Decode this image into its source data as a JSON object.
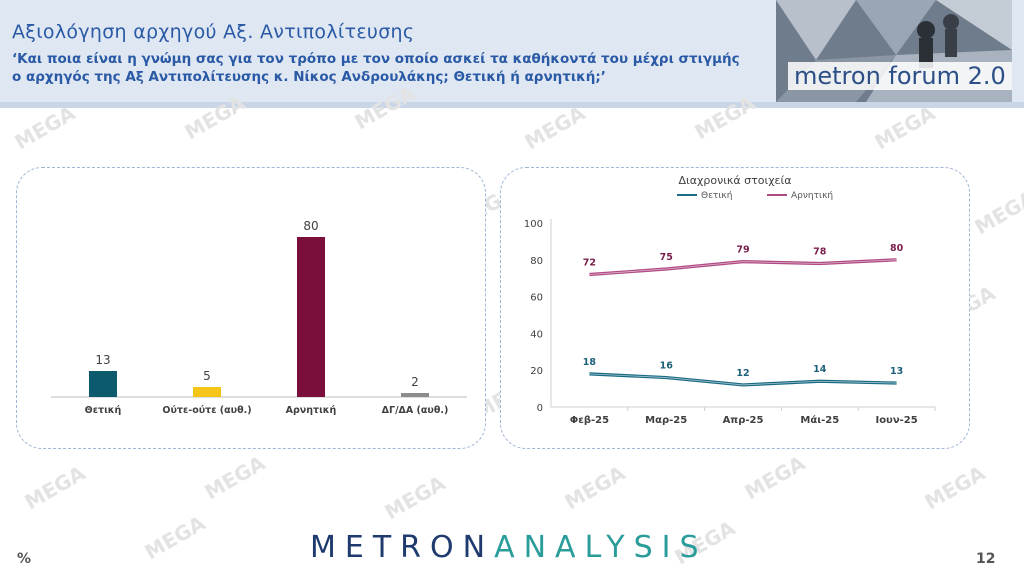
{
  "header": {
    "title": "Αξιολόγηση αρχηγού Αξ. Αντιπολίτευσης",
    "question": "‘Και ποια είναι η γνώμη σας για τον τρόπο με τον οποίο ασκεί τα καθήκοντά του μέχρι στιγμής ο αρχηγός της Αξ Αντιπολίτευσης κ. Νίκος Ανδρουλάκης; Θετική ή αρνητική;’",
    "logo_text": "metron forum 2.0"
  },
  "watermark_text": "MEGA",
  "footer": {
    "brand_part1": "METRON",
    "brand_part2": "ANALYSIS",
    "unit": "%",
    "page_number": "12"
  },
  "colors": {
    "positive": "#0b5a6e",
    "neutral": "#f5c518",
    "negative": "#7a0f3c",
    "dk": "#8c8c8c",
    "line_positive": "#1b6b84",
    "line_negative": "#b04a82",
    "title_blue": "#2a5aa6"
  },
  "chart_data": [
    {
      "type": "bar",
      "categories": [
        "Θετική",
        "Ούτε-ούτε (αυθ.)",
        "Αρνητική",
        "ΔΓ/ΔΑ (αυθ.)"
      ],
      "values": [
        13,
        5,
        80,
        2
      ],
      "value_labels": [
        "13",
        "5",
        "80",
        "2"
      ],
      "ylim": [
        0,
        100
      ],
      "grid": false
    },
    {
      "type": "line",
      "title": "Διαχρονικά στοιχεία",
      "categories": [
        "Φεβ-25",
        "Μαρ-25",
        "Απρ-25",
        "Μάι-25",
        "Ιουν-25"
      ],
      "series": [
        {
          "name": "Θετική",
          "values": [
            18,
            16,
            12,
            14,
            13
          ],
          "labels": [
            "18",
            "16",
            "12",
            "14",
            "13"
          ]
        },
        {
          "name": "Αρνητική",
          "values": [
            72,
            75,
            79,
            78,
            80
          ],
          "labels": [
            "72",
            "75",
            "79",
            "78",
            "80"
          ]
        }
      ],
      "yticks": [
        "0",
        "20",
        "40",
        "60",
        "80",
        "100"
      ],
      "ylim": [
        0,
        100
      ],
      "legend_position": "top",
      "grid": false
    }
  ]
}
